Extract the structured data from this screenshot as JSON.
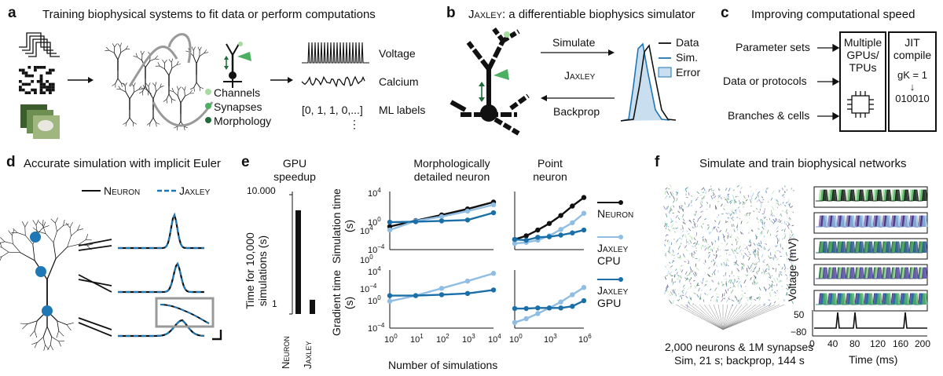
{
  "panels": {
    "a": {
      "letter": "a",
      "title": "Training biophysical systems to fit data or perform computations",
      "legend": [
        "Channels",
        "Synapses",
        "Morphology"
      ],
      "outputs": [
        "Voltage",
        "Calcium",
        "ML labels"
      ],
      "ml_labels_value": "[0, 1, 1, 0,...]",
      "ellipsis": "⋮"
    },
    "b": {
      "letter": "b",
      "title_name": "Jaxley",
      "title_rest": ": a differentiable biophysics simulator",
      "simulate": "Simulate",
      "middle": "Jaxley",
      "backprop": "Backprop",
      "legend": [
        "Data",
        "Sim.",
        "Error"
      ]
    },
    "c": {
      "letter": "c",
      "title": "Improving computational speed",
      "rows": [
        "Parameter sets",
        "Data or protocols",
        "Branches & cells"
      ],
      "box1": "Multiple GPUs/ TPUs",
      "box2_title": "JIT compile",
      "box2_eq": "gK = 1",
      "box2_arrow": "↓",
      "box2_bits": "010010"
    },
    "d": {
      "letter": "d",
      "title": "Accurate simulation with implicit Euler",
      "legend": [
        "Neuron",
        "Jaxley"
      ]
    },
    "e": {
      "letter": "e",
      "gpu_title": "GPU speedup",
      "ylabel": "Time for 10,000 simulations (s)",
      "ytick_top": "10.000",
      "ytick_bottom": "1",
      "morph_title": "Morphologically detailed neuron",
      "point_title": "Point neuron",
      "sim_ylabel": "Simulation time (s)",
      "grad_ylabel": "Gradient time (s)",
      "xlabel": "Number of simulations",
      "legend": [
        "Neuron",
        "Jaxley CPU",
        "Jaxley GPU"
      ]
    },
    "f": {
      "letter": "f",
      "title": "Simulate and train biophysical networks",
      "caption1": "2,000 neurons & 1M synapses",
      "caption2": "Sim, 21 s; backprop, 144 s",
      "ylabel": "Voltage (mV)",
      "xlabel": "Time (ms)",
      "yticks": [
        "50",
        "−80"
      ],
      "xticks": [
        "0",
        "40",
        "80",
        "120",
        "160",
        "200"
      ]
    }
  },
  "chart_data": [
    {
      "type": "bar",
      "title": "GPU speedup",
      "categories": [
        "Neuron",
        "Jaxley"
      ],
      "values": [
        3000,
        3
      ],
      "ylabel": "Time for 10,000 simulations (s)",
      "yscale": "log",
      "ylim": [
        1,
        10000
      ]
    },
    {
      "type": "line",
      "title": "Morphologically detailed neuron",
      "ylabel": "Simulation time (s)",
      "yscale": "log",
      "xscale": "log",
      "x": [
        1,
        10,
        100,
        1000,
        10000
      ],
      "series": [
        {
          "name": "Neuron",
          "values": [
            0.15,
            1.0,
            6,
            40,
            350
          ]
        },
        {
          "name": "Jaxley CPU",
          "values": [
            0.05,
            0.9,
            3.5,
            20,
            150
          ]
        },
        {
          "name": "Jaxley GPU",
          "values": [
            0.6,
            0.7,
            0.9,
            1.2,
            12
          ]
        }
      ]
    },
    {
      "type": "line",
      "title": "Point neuron",
      "ylabel": "Simulation time (s)",
      "yscale": "log",
      "xscale": "log",
      "x": [
        1,
        10,
        100,
        1000,
        10000,
        100000,
        1000000
      ],
      "series": [
        {
          "name": "Neuron",
          "values": [
            0.0025,
            0.008,
            0.05,
            0.4,
            5,
            100,
            1500
          ]
        },
        {
          "name": "Jaxley CPU",
          "values": [
            0.0007,
            0.001,
            0.002,
            0.008,
            0.06,
            0.5,
            10
          ]
        },
        {
          "name": "Jaxley GPU",
          "values": [
            0.0025,
            0.002,
            0.005,
            0.006,
            0.01,
            0.02,
            0.05
          ]
        }
      ]
    },
    {
      "type": "line",
      "title": "Morphologically detailed neuron",
      "ylabel": "Gradient time (s)",
      "xlabel": "Number of simulations",
      "yscale": "log",
      "xscale": "log",
      "x": [
        1,
        10,
        100,
        1000,
        10000
      ],
      "series": [
        {
          "name": "Jaxley CPU",
          "values": [
            0.5,
            3,
            30,
            300,
            3500
          ]
        },
        {
          "name": "Jaxley GPU",
          "values": [
            3,
            3,
            4,
            6,
            18
          ]
        }
      ]
    },
    {
      "type": "line",
      "title": "Point neuron",
      "ylabel": "Gradient time (s)",
      "xlabel": "Number of simulations",
      "yscale": "log",
      "xscale": "log",
      "x": [
        1,
        10,
        100,
        1000,
        10000,
        100000,
        1000000
      ],
      "series": [
        {
          "name": "Jaxley CPU",
          "values": [
            0.0006,
            0.002,
            0.01,
            0.06,
            0.4,
            4,
            40
          ]
        },
        {
          "name": "Jaxley GPU",
          "values": [
            0.05,
            0.05,
            0.06,
            0.06,
            0.06,
            0.1,
            0.6
          ]
        }
      ]
    }
  ],
  "colors": {
    "neuron": "#111111",
    "jaxley_cpu": "#8fbde3",
    "jaxley_gpu": "#1a6fa8",
    "green_light": "#a7dca0",
    "green_mid": "#4caf62",
    "green_dark": "#1f6b3a",
    "blue_dot": "#1f77b4"
  }
}
